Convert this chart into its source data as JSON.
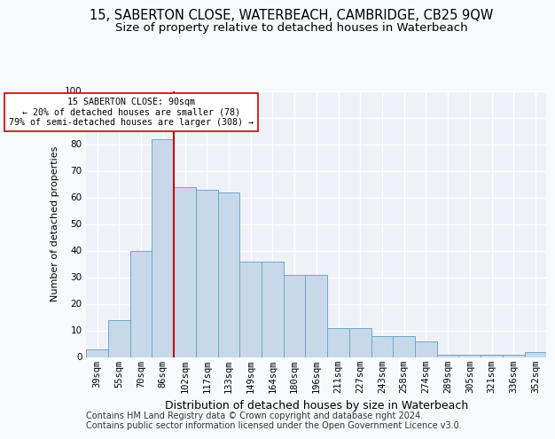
{
  "title1": "15, SABERTON CLOSE, WATERBEACH, CAMBRIDGE, CB25 9QW",
  "title2": "Size of property relative to detached houses in Waterbeach",
  "xlabel": "Distribution of detached houses by size in Waterbeach",
  "ylabel": "Number of detached properties",
  "categories": [
    "39sqm",
    "55sqm",
    "70sqm",
    "86sqm",
    "102sqm",
    "117sqm",
    "133sqm",
    "149sqm",
    "164sqm",
    "180sqm",
    "196sqm",
    "211sqm",
    "227sqm",
    "243sqm",
    "258sqm",
    "274sqm",
    "289sqm",
    "305sqm",
    "321sqm",
    "336sqm",
    "352sqm"
  ],
  "values": [
    3,
    14,
    40,
    82,
    64,
    63,
    62,
    36,
    36,
    31,
    31,
    11,
    11,
    8,
    8,
    6,
    1,
    1,
    1,
    1,
    2
  ],
  "bar_color": "#c8d8eb",
  "bar_edge_color": "#6ea8c8",
  "vline_x_index": 3.5,
  "vline_color": "#cc0000",
  "annotation_text": "15 SABERTON CLOSE: 90sqm\n← 20% of detached houses are smaller (78)\n79% of semi-detached houses are larger (308) →",
  "annotation_box_color": "#ffffff",
  "annotation_box_edge": "#cc0000",
  "ylim": [
    0,
    100
  ],
  "yticks": [
    0,
    10,
    20,
    30,
    40,
    50,
    60,
    70,
    80,
    90,
    100
  ],
  "footer1": "Contains HM Land Registry data © Crown copyright and database right 2024.",
  "footer2": "Contains public sector information licensed under the Open Government Licence v3.0.",
  "bg_color": "#eef2f8",
  "grid_color": "#ffffff",
  "title1_fontsize": 10.5,
  "title2_fontsize": 9.5,
  "xlabel_fontsize": 9,
  "ylabel_fontsize": 8,
  "tick_fontsize": 7.5,
  "footer_fontsize": 7
}
